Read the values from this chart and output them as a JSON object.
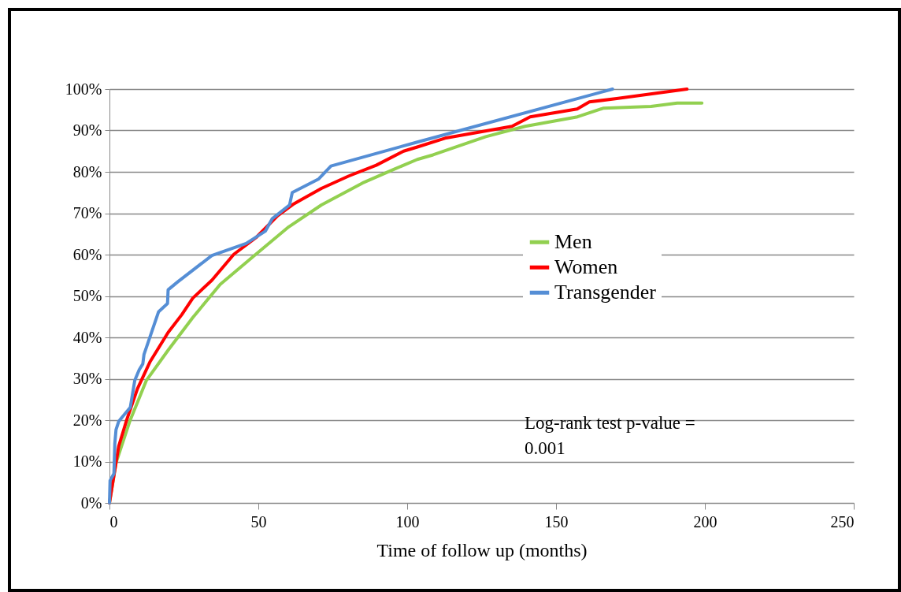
{
  "chart_data": {
    "type": "line",
    "xlabel": "Time of follow up (months)",
    "xlim": [
      0,
      250
    ],
    "xticks": [
      0,
      50,
      100,
      150,
      200,
      250
    ],
    "ylim": [
      0,
      100
    ],
    "yticks": [
      {
        "value": 0,
        "label": "0%"
      },
      {
        "value": 10,
        "label": "10%"
      },
      {
        "value": 20,
        "label": "20%"
      },
      {
        "value": 30,
        "label": "30%"
      },
      {
        "value": 40,
        "label": "40%"
      },
      {
        "value": 50,
        "label": "50%"
      },
      {
        "value": 60,
        "label": "60%"
      },
      {
        "value": 70,
        "label": "70%"
      },
      {
        "value": 80,
        "label": "80%"
      },
      {
        "value": 90,
        "label": "90%"
      },
      {
        "value": 100,
        "label": "100%"
      }
    ],
    "grid": "y",
    "legend": "right",
    "marker": "none",
    "line_style": "solid",
    "annotations": [
      "Log-rank test p-value = 0.001"
    ],
    "series": [
      {
        "name": "Men",
        "color": "#92d050",
        "x": [
          0,
          2.2,
          6.8,
          12.4,
          19.7,
          28,
          37.2,
          49.2,
          60.2,
          71.2,
          85,
          95.5,
          103.4,
          108.7,
          126.4,
          139.6,
          157.2,
          166,
          181.9,
          190.7,
          199
        ],
        "values": [
          0,
          9.7,
          19.7,
          29.6,
          36.9,
          44.8,
          52.8,
          60.1,
          66.7,
          72,
          77.3,
          80.6,
          83,
          84.1,
          88.5,
          91,
          93.3,
          95.4,
          95.8,
          96.6,
          96.6
        ]
      },
      {
        "name": "Women",
        "color": "#ff0000",
        "x": [
          0,
          3.1,
          5.9,
          9.4,
          13.7,
          19.7,
          24.3,
          28,
          34.4,
          41.8,
          49.2,
          56.5,
          62,
          71.2,
          80.4,
          89.6,
          98.8,
          103.4,
          113.1,
          135.2,
          141.3,
          157.1,
          161.2,
          170.4,
          194
        ],
        "values": [
          0,
          13.7,
          20.3,
          27.6,
          34.2,
          41.2,
          45.5,
          49.5,
          53.8,
          60.1,
          64.1,
          69.4,
          72.3,
          76,
          79,
          81.6,
          85,
          86,
          88.2,
          91,
          93.3,
          95.2,
          96.9,
          97.7,
          100
        ]
      },
      {
        "name": "Transgender",
        "color": "#558ed5",
        "x": [
          0,
          0.2,
          1.5,
          1.8,
          2.2,
          3.1,
          7,
          8.5,
          10,
          11.2,
          11.6,
          16.5,
          19.5,
          19.7,
          22.9,
          34.4,
          45.9,
          52.4,
          54.7,
          60.5,
          61.4,
          70.3,
          74.4,
          103.4,
          169
        ],
        "values": [
          0,
          5.4,
          7.1,
          14.4,
          17.7,
          19.7,
          23.1,
          29.6,
          32.2,
          33.6,
          35.9,
          46.2,
          48.2,
          51.5,
          53.4,
          59.8,
          62.7,
          65.7,
          68.7,
          72,
          75,
          78.3,
          81.4,
          87.2,
          100
        ]
      }
    ]
  }
}
